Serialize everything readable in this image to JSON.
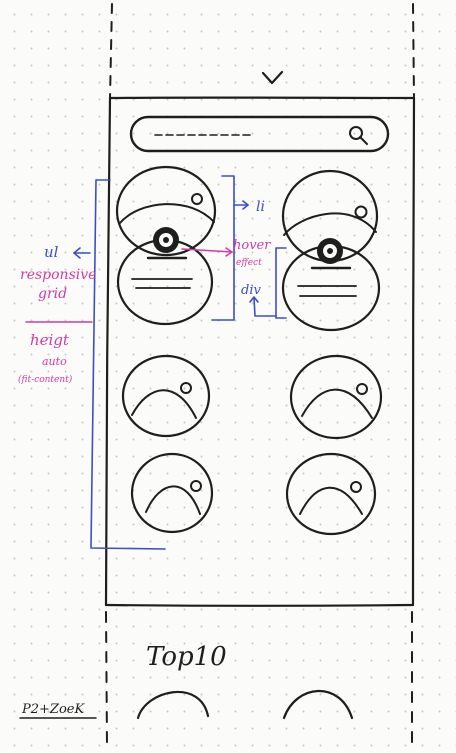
{
  "annotations": {
    "li": "li",
    "hover": "hover",
    "effect": "effect",
    "div": "div",
    "ul": "ul",
    "responsive": "responsive",
    "grid": "grid",
    "height": "heigt",
    "auto": "auto",
    "fit_content": "(fit-content)"
  },
  "section_title": "Top10",
  "side_label": "P2+ZoeK",
  "colors": {
    "ink": "#1e1e1e",
    "blue_annotation": "#3c4fc7",
    "pink_annotation": "#d23aa7",
    "paper": "#fbfbf9"
  },
  "icons": [
    "chevron-down-icon",
    "search-icon",
    "image-placeholder-icon",
    "disc-icon"
  ]
}
